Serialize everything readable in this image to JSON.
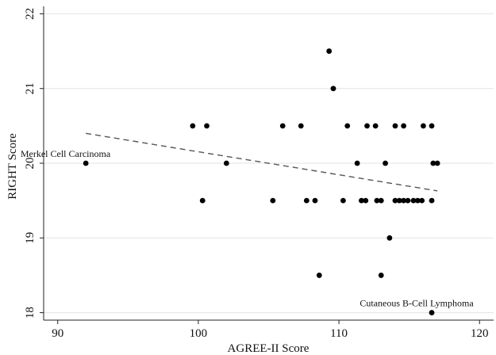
{
  "chart_data": {
    "type": "scatter",
    "xlabel": "AGREE-II Score",
    "ylabel": "RIGHT Score",
    "xlim": [
      89,
      121
    ],
    "ylim": [
      17.9,
      22.1
    ],
    "xticks": [
      90,
      100,
      110,
      120
    ],
    "yticks": [
      18,
      19,
      20,
      21,
      22
    ],
    "grid": true,
    "colors": {
      "points": "#000000",
      "fit_line": "#555555",
      "grid": "#e3e3e3",
      "axis": "#222222"
    },
    "series": [
      {
        "points": [
          {
            "x": 92.0,
            "y": 20.0
          },
          {
            "x": 99.6,
            "y": 20.5
          },
          {
            "x": 100.3,
            "y": 19.5
          },
          {
            "x": 100.6,
            "y": 20.5
          },
          {
            "x": 102.0,
            "y": 20.0
          },
          {
            "x": 105.3,
            "y": 19.5
          },
          {
            "x": 106.0,
            "y": 20.5
          },
          {
            "x": 107.3,
            "y": 20.5
          },
          {
            "x": 107.7,
            "y": 19.5
          },
          {
            "x": 108.3,
            "y": 19.5
          },
          {
            "x": 108.6,
            "y": 18.5
          },
          {
            "x": 109.3,
            "y": 21.5
          },
          {
            "x": 109.6,
            "y": 21.0
          },
          {
            "x": 110.3,
            "y": 19.5
          },
          {
            "x": 110.6,
            "y": 20.5
          },
          {
            "x": 111.3,
            "y": 20.0
          },
          {
            "x": 111.6,
            "y": 19.5
          },
          {
            "x": 111.9,
            "y": 19.5
          },
          {
            "x": 112.0,
            "y": 20.5
          },
          {
            "x": 112.6,
            "y": 20.5
          },
          {
            "x": 112.7,
            "y": 19.5
          },
          {
            "x": 113.0,
            "y": 18.5
          },
          {
            "x": 113.0,
            "y": 19.5
          },
          {
            "x": 113.3,
            "y": 20.0
          },
          {
            "x": 113.6,
            "y": 19.0
          },
          {
            "x": 114.0,
            "y": 20.5
          },
          {
            "x": 114.0,
            "y": 19.5
          },
          {
            "x": 114.3,
            "y": 19.5
          },
          {
            "x": 114.6,
            "y": 19.5
          },
          {
            "x": 114.6,
            "y": 20.5
          },
          {
            "x": 114.9,
            "y": 19.5
          },
          {
            "x": 115.3,
            "y": 19.5
          },
          {
            "x": 115.6,
            "y": 19.5
          },
          {
            "x": 115.9,
            "y": 19.5
          },
          {
            "x": 116.0,
            "y": 20.5
          },
          {
            "x": 116.6,
            "y": 20.5
          },
          {
            "x": 116.6,
            "y": 19.5
          },
          {
            "x": 116.7,
            "y": 20.0
          },
          {
            "x": 117.0,
            "y": 20.0
          },
          {
            "x": 116.6,
            "y": 18.0
          }
        ]
      }
    ],
    "fit_line": {
      "style": "dashed",
      "x": [
        92,
        117
      ],
      "y": [
        20.4,
        19.63
      ]
    },
    "annotations": [
      {
        "text": "Merkel Cell Carcinoma",
        "x": 92.0,
        "y": 20.0,
        "anchor": "end-above"
      },
      {
        "text": "Cutaneous B-Cell Lymphoma",
        "x": 116.6,
        "y": 18.0,
        "anchor": "middle-above"
      }
    ]
  }
}
